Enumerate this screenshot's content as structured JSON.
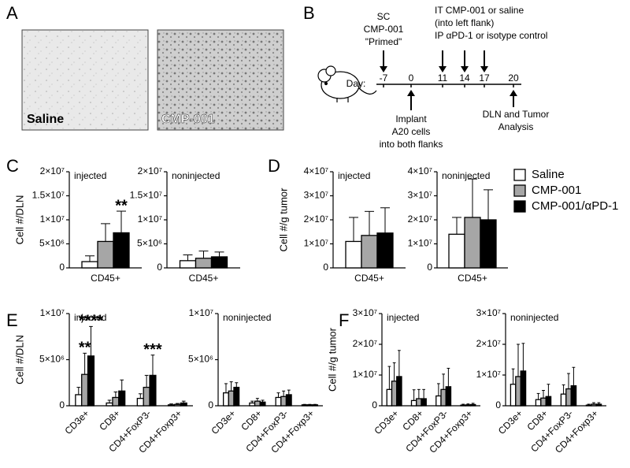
{
  "panels": [
    "A",
    "B",
    "C",
    "D",
    "E",
    "F"
  ],
  "micrographs": [
    "Saline",
    "CMP-001"
  ],
  "timeline": {
    "top_left": [
      "SC",
      "CMP-001",
      "\"Primed\""
    ],
    "top_right": [
      "IT CMP-001 or saline",
      "(into left flank)",
      "IP αPD-1 or isotype control"
    ],
    "day_label": "Day:",
    "days": [
      -7,
      0,
      11,
      14,
      17,
      20
    ],
    "bottom_left": [
      "Implant",
      "A20 cells",
      "into both flanks"
    ],
    "bottom_right": [
      "DLN and Tumor",
      "Analysis"
    ]
  },
  "chart_data": [
    {
      "type": "bar",
      "subtitle": "injected",
      "ylabel": "Cell #/DLN",
      "categories": [
        "CD45+"
      ],
      "ylim": [
        0,
        20000000
      ],
      "yticks": [
        0,
        {
          "value": 5000000,
          "label": "5×10⁶"
        },
        {
          "value": 10000000,
          "label": "1×10⁷"
        },
        {
          "value": 15000000,
          "label": "1.5×10⁷"
        },
        {
          "value": 20000000,
          "label": "2×10⁷"
        }
      ],
      "series": [
        {
          "name": "Saline",
          "color": "#ffffff",
          "values": [
            1300000
          ],
          "errors": [
            1200000
          ]
        },
        {
          "name": "CMP-001",
          "color": "#a6a6a6",
          "values": [
            5500000
          ],
          "errors": [
            3700000
          ]
        },
        {
          "name": "CMP-001/αPD-1",
          "color": "#000000",
          "values": [
            7300000
          ],
          "errors": [
            4500000
          ]
        }
      ],
      "annotations": [
        {
          "text": "**",
          "series": "CMP-001/αPD-1",
          "category": "CD45+"
        }
      ]
    },
    {
      "type": "bar",
      "subtitle": "noninjected",
      "categories": [
        "CD45+"
      ],
      "ylim": [
        0,
        20000000
      ],
      "yticks": [
        0,
        {
          "value": 5000000,
          "label": "5×10⁶"
        },
        {
          "value": 10000000,
          "label": "1×10⁷"
        },
        {
          "value": 15000000,
          "label": "1.5×10⁷"
        },
        {
          "value": 20000000,
          "label": "2×10⁷"
        }
      ],
      "series": [
        {
          "name": "Saline",
          "color": "#ffffff",
          "values": [
            1500000
          ],
          "errors": [
            1200000
          ]
        },
        {
          "name": "CMP-001",
          "color": "#a6a6a6",
          "values": [
            2000000
          ],
          "errors": [
            1500000
          ]
        },
        {
          "name": "CMP-001/αPD-1",
          "color": "#000000",
          "values": [
            2300000
          ],
          "errors": [
            1000000
          ]
        }
      ]
    },
    {
      "type": "bar",
      "subtitle": "injected",
      "ylabel": "Cell #/g tumor",
      "categories": [
        "CD45+"
      ],
      "ylim": [
        0,
        40000000
      ],
      "yticks": [
        0,
        {
          "value": 10000000,
          "label": "1×10⁷"
        },
        {
          "value": 20000000,
          "label": "2×10⁷"
        },
        {
          "value": 30000000,
          "label": "3×10⁷"
        },
        {
          "value": 40000000,
          "label": "4×10⁷"
        }
      ],
      "series": [
        {
          "name": "Saline",
          "color": "#ffffff",
          "values": [
            11000000
          ],
          "errors": [
            10000000
          ]
        },
        {
          "name": "CMP-001",
          "color": "#a6a6a6",
          "values": [
            13500000
          ],
          "errors": [
            10000000
          ]
        },
        {
          "name": "CMP-001/αPD-1",
          "color": "#000000",
          "values": [
            14500000
          ],
          "errors": [
            10500000
          ]
        }
      ]
    },
    {
      "type": "bar",
      "subtitle": "noninjected",
      "legend": "outside-right",
      "categories": [
        "CD45+"
      ],
      "ylim": [
        0,
        40000000
      ],
      "yticks": [
        0,
        {
          "value": 10000000,
          "label": "1×10⁷"
        },
        {
          "value": 20000000,
          "label": "2×10⁷"
        },
        {
          "value": 30000000,
          "label": "3×10⁷"
        },
        {
          "value": 40000000,
          "label": "4×10⁷"
        }
      ],
      "series": [
        {
          "name": "Saline",
          "color": "#ffffff",
          "values": [
            14000000
          ],
          "errors": [
            7000000
          ]
        },
        {
          "name": "CMP-001",
          "color": "#a6a6a6",
          "values": [
            21000000
          ],
          "errors": [
            16000000
          ]
        },
        {
          "name": "CMP-001/αPD-1",
          "color": "#000000",
          "values": [
            20000000
          ],
          "errors": [
            12500000
          ]
        }
      ]
    },
    {
      "type": "bar",
      "subtitle": "injected",
      "ylabel": "Cell #/DLN",
      "categories": [
        "CD3e+",
        "CD8+",
        "CD4+FoxP3-",
        "CD4+Foxp3+"
      ],
      "ylim": [
        0,
        10000000
      ],
      "yticks": [
        0,
        {
          "value": 5000000,
          "label": "5×10⁶"
        },
        {
          "value": 10000000,
          "label": "1×10⁷"
        }
      ],
      "series": [
        {
          "name": "Saline",
          "color": "#ffffff",
          "values": [
            1200000,
            300000,
            800000,
            100000
          ],
          "errors": [
            800000,
            300000,
            500000,
            100000
          ]
        },
        {
          "name": "CMP-001",
          "color": "#a6a6a6",
          "values": [
            3400000,
            900000,
            2000000,
            150000
          ],
          "errors": [
            2300000,
            600000,
            1300000,
            100000
          ]
        },
        {
          "name": "CMP-001/αPD-1",
          "color": "#000000",
          "values": [
            5400000,
            1600000,
            3300000,
            300000
          ],
          "errors": [
            3200000,
            1200000,
            2200000,
            200000
          ]
        }
      ],
      "annotations": [
        {
          "text": "**",
          "series": "CMP-001",
          "category": "CD3e+"
        },
        {
          "text": "****",
          "series": "CMP-001/αPD-1",
          "category": "CD3e+"
        },
        {
          "text": "***",
          "series": "CMP-001/αPD-1",
          "category": "CD4+FoxP3-"
        }
      ]
    },
    {
      "type": "bar",
      "subtitle": "noninjected",
      "categories": [
        "CD3e+",
        "CD8+",
        "CD4+FoxP3-",
        "CD4+Foxp3+"
      ],
      "ylim": [
        0,
        10000000
      ],
      "yticks": [
        0,
        {
          "value": 5000000,
          "label": "5×10⁶"
        },
        {
          "value": 10000000,
          "label": "1×10⁷"
        }
      ],
      "series": [
        {
          "name": "Saline",
          "color": "#ffffff",
          "values": [
            1400000,
            300000,
            900000,
            100000
          ],
          "errors": [
            1000000,
            200000,
            500000,
            50000
          ]
        },
        {
          "name": "CMP-001",
          "color": "#a6a6a6",
          "values": [
            1600000,
            500000,
            1000000,
            100000
          ],
          "errors": [
            1000000,
            300000,
            600000,
            50000
          ]
        },
        {
          "name": "CMP-001/αPD-1",
          "color": "#000000",
          "values": [
            2000000,
            400000,
            1200000,
            100000
          ],
          "errors": [
            500000,
            200000,
            500000,
            50000
          ]
        }
      ]
    },
    {
      "type": "bar",
      "subtitle": "injected",
      "ylabel": "Cell #/g tumor",
      "categories": [
        "CD3e+",
        "CD8+",
        "CD4+FoxP3-",
        "CD4+Foxp3+"
      ],
      "ylim": [
        0,
        30000000
      ],
      "yticks": [
        0,
        {
          "value": 10000000,
          "label": "1×10⁷"
        },
        {
          "value": 20000000,
          "label": "2×10⁷"
        },
        {
          "value": 30000000,
          "label": "3×10⁷"
        }
      ],
      "series": [
        {
          "name": "Saline",
          "color": "#ffffff",
          "values": [
            5300000,
            1700000,
            3200000,
            200000
          ],
          "errors": [
            7500000,
            3500000,
            4000000,
            300000
          ]
        },
        {
          "name": "CMP-001",
          "color": "#a6a6a6",
          "values": [
            8000000,
            2300000,
            5300000,
            300000
          ],
          "errors": [
            6000000,
            3000000,
            5000000,
            300000
          ]
        },
        {
          "name": "CMP-001/αPD-1",
          "color": "#000000",
          "values": [
            9500000,
            2300000,
            6200000,
            400000
          ],
          "errors": [
            8500000,
            3000000,
            6000000,
            400000
          ]
        }
      ]
    },
    {
      "type": "bar",
      "subtitle": "noninjected",
      "categories": [
        "CD3e+",
        "CD8+",
        "CD4+FoxP3-",
        "CD4+Foxp3+"
      ],
      "ylim": [
        0,
        30000000
      ],
      "yticks": [
        0,
        {
          "value": 10000000,
          "label": "1×10⁷"
        },
        {
          "value": 20000000,
          "label": "2×10⁷"
        },
        {
          "value": 30000000,
          "label": "3×10⁷"
        }
      ],
      "series": [
        {
          "name": "Saline",
          "color": "#ffffff",
          "values": [
            7000000,
            2000000,
            3800000,
            200000
          ],
          "errors": [
            5000000,
            2000000,
            3000000,
            300000
          ]
        },
        {
          "name": "CMP-001",
          "color": "#a6a6a6",
          "values": [
            9500000,
            2500000,
            5500000,
            500000
          ],
          "errors": [
            10500000,
            2500000,
            5000000,
            500000
          ]
        },
        {
          "name": "CMP-001/αPD-1",
          "color": "#000000",
          "values": [
            11300000,
            3000000,
            6500000,
            500000
          ],
          "errors": [
            9000000,
            4000000,
            6000000,
            500000
          ]
        }
      ]
    }
  ]
}
